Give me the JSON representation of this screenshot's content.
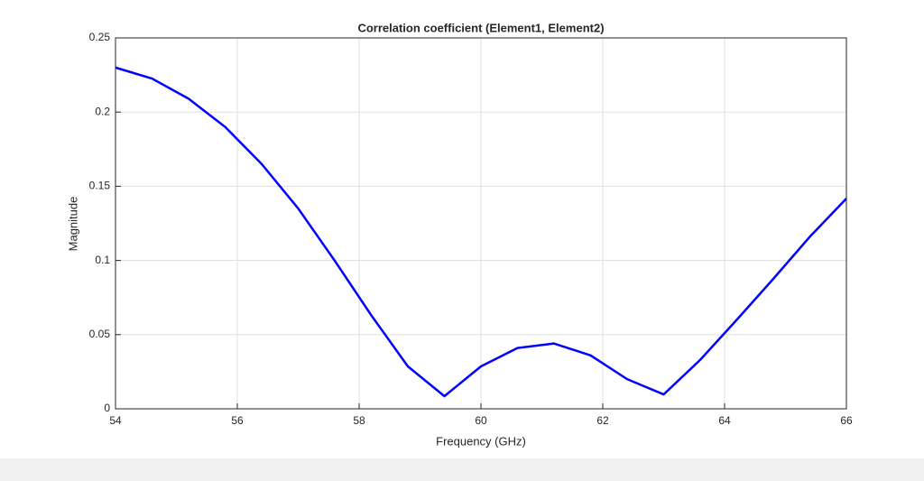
{
  "chart_data": {
    "type": "line",
    "title": "Correlation coefficient (Element1, Element2)",
    "x_label": "Frequency (GHz)",
    "y_label": "Magnitude",
    "x": [
      54,
      54.6,
      55.2,
      55.8,
      56.4,
      57,
      57.6,
      58.2,
      58.8,
      59.4,
      60,
      60.6,
      61.2,
      61.8,
      62.4,
      63,
      63.6,
      64.2,
      64.8,
      65.4,
      66
    ],
    "series": [
      {
        "name": "Correlation coefficient",
        "color": "#0000ff",
        "values": [
          0.23,
          0.2226,
          0.209,
          0.19,
          0.165,
          0.135,
          0.0998,
          0.063,
          0.0286,
          0.0085,
          0.0286,
          0.041,
          0.044,
          0.036,
          0.02,
          0.0097,
          0.033,
          0.06,
          0.0876,
          0.116,
          0.1417
        ]
      }
    ],
    "xlim": [
      54,
      66
    ],
    "xticks": [
      54,
      56,
      58,
      60,
      62,
      64,
      66
    ],
    "ylim": [
      0,
      0.25
    ],
    "yticks": [
      0,
      0.05,
      0.1,
      0.15,
      0.2,
      0.25
    ],
    "grid": true
  }
}
